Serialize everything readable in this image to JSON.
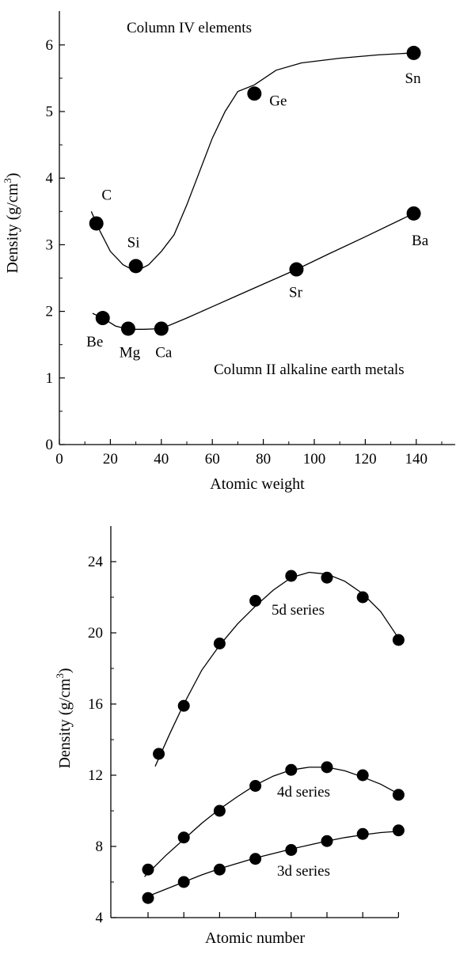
{
  "chart_data": [
    {
      "type": "scatter",
      "xlabel": "Atomic weight",
      "ylabel_main": "Density (g/cm",
      "ylabel_sup": "3",
      "ylabel_close": ")",
      "xlim": [
        0,
        155
      ],
      "ylim": [
        0,
        6.5
      ],
      "xticks": [
        0,
        20,
        40,
        60,
        80,
        100,
        120,
        140
      ],
      "yticks": [
        0,
        1,
        2,
        3,
        4,
        5,
        6
      ],
      "annotations": [
        "Column IV elements",
        "Column II alkaline earth metals"
      ],
      "series": [
        {
          "name": "Column IV elements",
          "points": [
            {
              "label": "C",
              "x": 14.5,
              "y": 3.32
            },
            {
              "label": "Si",
              "x": 30,
              "y": 2.68
            },
            {
              "label": "Ge",
              "x": 76.5,
              "y": 5.27
            },
            {
              "label": "Sn",
              "x": 139,
              "y": 5.88
            }
          ],
          "curve": [
            [
              12.5,
              3.5
            ],
            [
              16,
              3.2
            ],
            [
              20,
              2.9
            ],
            [
              25,
              2.7
            ],
            [
              30,
              2.6
            ],
            [
              35,
              2.7
            ],
            [
              40,
              2.9
            ],
            [
              45,
              3.15
            ],
            [
              50,
              3.6
            ],
            [
              55,
              4.1
            ],
            [
              60,
              4.6
            ],
            [
              65,
              5.0
            ],
            [
              70,
              5.3
            ],
            [
              76.5,
              5.4
            ],
            [
              85,
              5.62
            ],
            [
              95,
              5.73
            ],
            [
              110,
              5.8
            ],
            [
              125,
              5.85
            ],
            [
              139,
              5.88
            ]
          ]
        },
        {
          "name": "Column II alkaline earth metals",
          "points": [
            {
              "label": "Be",
              "x": 17,
              "y": 1.9
            },
            {
              "label": "Mg",
              "x": 27,
              "y": 1.74
            },
            {
              "label": "Ca",
              "x": 40,
              "y": 1.74
            },
            {
              "label": "Sr",
              "x": 93,
              "y": 2.63
            },
            {
              "label": "Ba",
              "x": 139,
              "y": 3.47
            }
          ],
          "curve": [
            [
              13,
              1.97
            ],
            [
              17,
              1.9
            ],
            [
              22,
              1.78
            ],
            [
              27,
              1.73
            ],
            [
              33,
              1.73
            ],
            [
              40,
              1.74
            ],
            [
              50,
              1.9
            ],
            [
              60,
              2.07
            ],
            [
              70,
              2.24
            ],
            [
              80,
              2.41
            ],
            [
              93,
              2.63
            ],
            [
              105,
              2.85
            ],
            [
              120,
              3.12
            ],
            [
              139,
              3.47
            ]
          ]
        }
      ]
    },
    {
      "type": "scatter",
      "xlabel": "Atomic number",
      "ylabel_main": "Density (g/cm",
      "ylabel_sup": "3",
      "ylabel_close": ")",
      "ylim": [
        4,
        26
      ],
      "yticks": [
        4,
        8,
        12,
        16,
        20,
        24
      ],
      "xticks_count": 8,
      "series": [
        {
          "name": "5d series",
          "x": [
            0.3,
            1,
            2,
            3,
            4,
            5,
            6,
            7
          ],
          "y": [
            13.2,
            15.9,
            19.4,
            21.8,
            23.2,
            23.1,
            22.0,
            19.6
          ],
          "curve": [
            [
              0.2,
              12.5
            ],
            [
              0.6,
              14.3
            ],
            [
              1,
              16.0
            ],
            [
              1.5,
              17.9
            ],
            [
              2,
              19.3
            ],
            [
              2.5,
              20.5
            ],
            [
              3,
              21.5
            ],
            [
              3.5,
              22.4
            ],
            [
              4,
              23.1
            ],
            [
              4.5,
              23.4
            ],
            [
              5,
              23.3
            ],
            [
              5.5,
              22.9
            ],
            [
              6,
              22.2
            ],
            [
              6.5,
              21.2
            ],
            [
              7,
              19.7
            ]
          ]
        },
        {
          "name": "4d series",
          "x": [
            0,
            1,
            2,
            3,
            4,
            5,
            6,
            7
          ],
          "y": [
            6.7,
            8.5,
            10.0,
            11.4,
            12.3,
            12.45,
            12.0,
            10.9
          ],
          "curve": [
            [
              -0.1,
              6.3
            ],
            [
              0.5,
              7.5
            ],
            [
              1,
              8.4
            ],
            [
              1.5,
              9.3
            ],
            [
              2,
              10.1
            ],
            [
              2.5,
              10.8
            ],
            [
              3,
              11.45
            ],
            [
              3.5,
              11.95
            ],
            [
              4,
              12.3
            ],
            [
              4.5,
              12.45
            ],
            [
              5,
              12.45
            ],
            [
              5.5,
              12.25
            ],
            [
              6,
              11.9
            ],
            [
              6.5,
              11.5
            ],
            [
              7,
              10.95
            ]
          ]
        },
        {
          "name": "3d series",
          "x": [
            0,
            1,
            2,
            3,
            4,
            5,
            6,
            7
          ],
          "y": [
            5.1,
            6.0,
            6.7,
            7.3,
            7.8,
            8.3,
            8.7,
            8.9
          ],
          "curve": [
            [
              0,
              5.2
            ],
            [
              0.5,
              5.6
            ],
            [
              1,
              6.0
            ],
            [
              1.5,
              6.4
            ],
            [
              2,
              6.75
            ],
            [
              2.5,
              7.05
            ],
            [
              3,
              7.35
            ],
            [
              3.5,
              7.6
            ],
            [
              4,
              7.85
            ],
            [
              4.5,
              8.08
            ],
            [
              5,
              8.3
            ],
            [
              5.5,
              8.5
            ],
            [
              6,
              8.65
            ],
            [
              6.5,
              8.78
            ],
            [
              7,
              8.85
            ]
          ]
        }
      ]
    }
  ]
}
